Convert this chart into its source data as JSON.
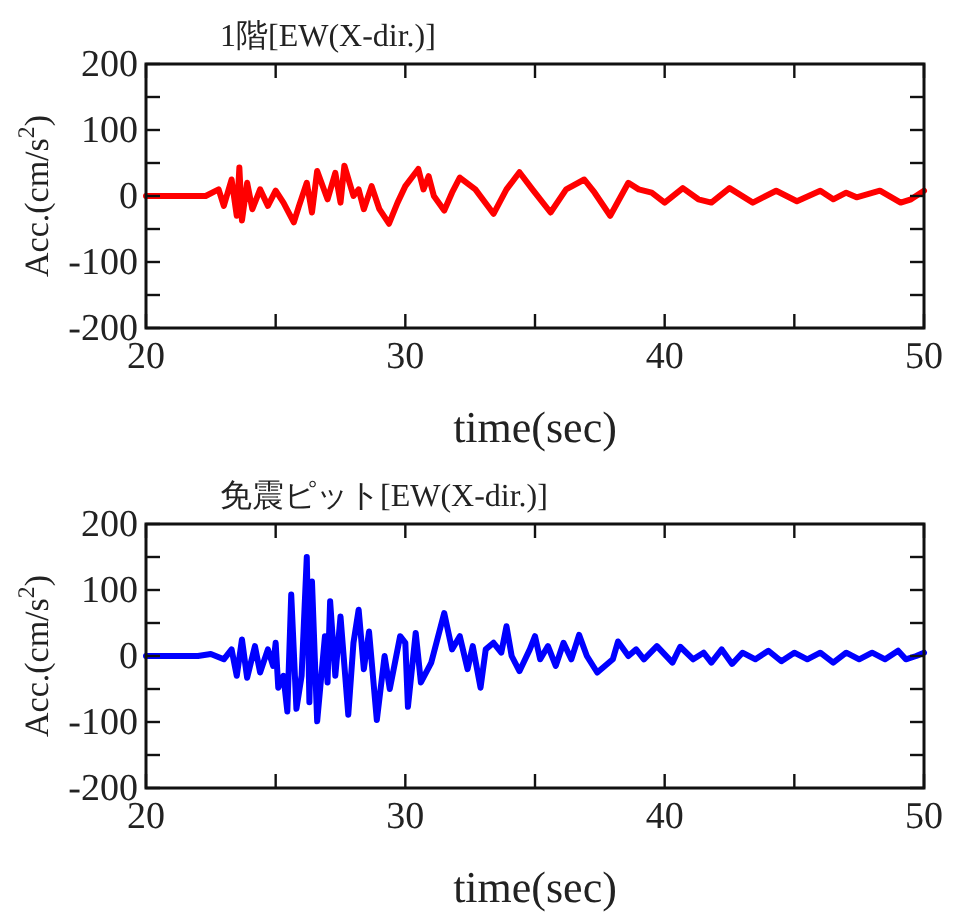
{
  "chart_data": [
    {
      "type": "line",
      "title": "1階[EW(X-dir.)]",
      "xlabel": "time(sec)",
      "ylabel": "Acc.(cm/s$^{2}$)",
      "color": "#ff0000",
      "xlim": [
        20,
        50
      ],
      "ylim": [
        -200,
        200
      ],
      "xticks": [
        20,
        {
          "value": 25,
          "label": null
        },
        30,
        {
          "value": 35,
          "label": null
        },
        40,
        {
          "value": 45,
          "label": null
        },
        50
      ],
      "yticks": [
        -200,
        {
          "value": -150,
          "label": null
        },
        -100,
        {
          "value": -50,
          "label": null
        },
        0,
        {
          "value": 50,
          "label": null
        },
        100,
        {
          "value": 150,
          "label": null
        },
        200
      ],
      "x": [
        20,
        22.3,
        22.8,
        23.0,
        23.3,
        23.5,
        23.6,
        23.7,
        23.9,
        24.1,
        24.4,
        24.7,
        25.0,
        25.3,
        25.7,
        25.9,
        26.2,
        26.4,
        26.6,
        27.0,
        27.3,
        27.5,
        27.65,
        28.0,
        28.2,
        28.4,
        28.7,
        29.0,
        29.37,
        29.7,
        30.0,
        30.5,
        30.7,
        30.9,
        31.1,
        31.5,
        31.8,
        32.1,
        32.7,
        33.4,
        33.9,
        34.4,
        34.9,
        35.6,
        36.2,
        36.9,
        37.3,
        37.9,
        38.6,
        39.0,
        39.5,
        40.0,
        40.7,
        41.3,
        41.8,
        42.5,
        43.4,
        44.3,
        45.1,
        46.0,
        46.5,
        47.0,
        47.4,
        48.3,
        49.1,
        49.5,
        50
      ],
      "values": [
        0,
        0,
        10,
        -15,
        25,
        -30,
        43,
        -37,
        20,
        -20,
        10,
        -15,
        8,
        -10,
        -40,
        -15,
        20,
        -25,
        38,
        -5,
        35,
        -10,
        46,
        0,
        10,
        -20,
        15,
        -20,
        -42,
        -10,
        15,
        41,
        10,
        30,
        0,
        -22,
        5,
        28,
        10,
        -27,
        10,
        36,
        10,
        -25,
        10,
        25,
        5,
        -30,
        20,
        10,
        5,
        -10,
        12,
        -5,
        -10,
        12,
        -10,
        8,
        -8,
        8,
        -5,
        5,
        -2,
        8,
        -10,
        -5,
        8
      ]
    },
    {
      "type": "line",
      "title": "免震ピット[EW(X-dir.)]",
      "xlabel": "time(sec)",
      "ylabel": "Acc.(cm/s$^{2}$)",
      "color": "#0000ff",
      "xlim": [
        20,
        50
      ],
      "ylim": [
        -200,
        200
      ],
      "xticks": [
        20,
        {
          "value": 25,
          "label": null
        },
        30,
        {
          "value": 35,
          "label": null
        },
        40,
        {
          "value": 45,
          "label": null
        },
        50
      ],
      "yticks": [
        -200,
        {
          "value": -150,
          "label": null
        },
        -100,
        {
          "value": -50,
          "label": null
        },
        0,
        {
          "value": 50,
          "label": null
        },
        100,
        {
          "value": 150,
          "label": null
        },
        200
      ],
      "x": [
        20,
        22.0,
        22.5,
        23.0,
        23.3,
        23.5,
        23.7,
        23.9,
        24.2,
        24.4,
        24.7,
        24.9,
        25.0,
        25.1,
        25.3,
        25.45,
        25.6,
        25.8,
        26.0,
        26.2,
        26.3,
        26.4,
        26.6,
        26.9,
        27.0,
        27.1,
        27.3,
        27.5,
        27.8,
        28.0,
        28.2,
        28.4,
        28.6,
        28.9,
        29.2,
        29.4,
        29.6,
        29.8,
        30.0,
        30.1,
        30.4,
        30.6,
        31.0,
        31.5,
        31.8,
        32.1,
        32.4,
        32.6,
        32.9,
        33.1,
        33.4,
        33.7,
        33.9,
        34.1,
        34.4,
        34.8,
        35.0,
        35.2,
        35.5,
        35.8,
        36.1,
        36.4,
        36.7,
        37.0,
        37.4,
        38.0,
        38.2,
        38.6,
        38.9,
        39.2,
        39.7,
        40.3,
        40.6,
        41.1,
        41.5,
        41.8,
        42.2,
        42.6,
        43.0,
        43.5,
        44.0,
        44.5,
        45.0,
        45.5,
        46.0,
        46.5,
        47.0,
        47.5,
        48.0,
        48.5,
        49.0,
        49.3,
        49.7,
        50
      ],
      "values": [
        0,
        0,
        3,
        -5,
        10,
        -30,
        25,
        -33,
        15,
        -25,
        10,
        -15,
        20,
        -48,
        -30,
        -84,
        93,
        -80,
        -30,
        150,
        -70,
        113,
        -99,
        30,
        -40,
        83,
        -30,
        60,
        -89,
        20,
        70,
        -20,
        37,
        -97,
        0,
        -50,
        -10,
        30,
        20,
        -77,
        35,
        -40,
        -10,
        65,
        10,
        30,
        -20,
        15,
        -48,
        10,
        20,
        5,
        45,
        0,
        -23,
        10,
        30,
        -5,
        15,
        -15,
        20,
        -5,
        32,
        0,
        -25,
        -5,
        22,
        0,
        10,
        -5,
        15,
        -10,
        14,
        -5,
        5,
        -10,
        10,
        -12,
        5,
        -5,
        8,
        -8,
        5,
        -5,
        5,
        -10,
        5,
        -5,
        5,
        -5,
        8,
        -5,
        0,
        5
      ]
    }
  ]
}
